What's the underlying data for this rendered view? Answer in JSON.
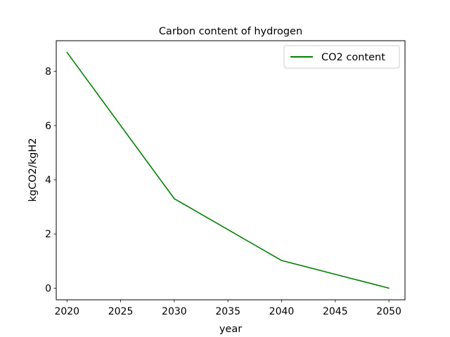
{
  "chart_data": {
    "type": "line",
    "title": "Carbon content of hydrogen",
    "xlabel": "year",
    "ylabel": "kgCO2/kgH2",
    "x": [
      2020,
      2030,
      2040,
      2050
    ],
    "series": [
      {
        "name": "CO2 content",
        "values": [
          8.7,
          3.3,
          1.02,
          0.0
        ],
        "color": "#008000"
      }
    ],
    "xlim": [
      2019,
      2051.5
    ],
    "ylim": [
      -0.43,
      9.13
    ],
    "xticks": [
      2020,
      2025,
      2030,
      2035,
      2040,
      2045,
      2050
    ],
    "yticks": [
      0,
      2,
      4,
      6,
      8
    ],
    "grid": false,
    "legend_position": "top-right"
  }
}
